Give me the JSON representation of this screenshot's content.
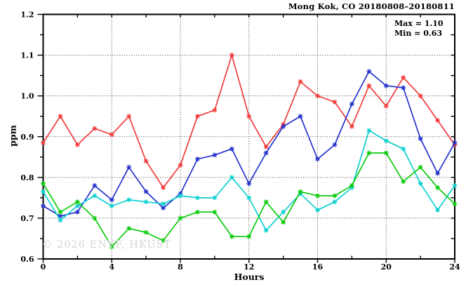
{
  "chart_data": {
    "type": "line",
    "title": "Mong Kok, CO 20180808–20180811",
    "max_label": "Max = 1.10",
    "min_label": "Min = 0.63",
    "xlabel": "Hours",
    "ylabel": "ppm",
    "watermark": "© 2026 ENVF, HKUST",
    "xlim": [
      0,
      24
    ],
    "ylim": [
      0.6,
      1.2
    ],
    "x_major_tick_step": 4,
    "x_minor_tick_step": 2,
    "y_major_tick_step": 0.1,
    "y_minor_tick_step": 0.05,
    "grid": "dotted-at-major-ticks",
    "legend": "none",
    "marker": "asterisk",
    "x": [
      0,
      1,
      2,
      3,
      4,
      5,
      6,
      7,
      8,
      9,
      10,
      11,
      12,
      13,
      14,
      15,
      16,
      17,
      18,
      19,
      20,
      21,
      22,
      23,
      24
    ],
    "series": [
      {
        "name": "red",
        "color": "#f23b3b",
        "values": [
          0.885,
          0.95,
          0.88,
          0.92,
          0.905,
          0.95,
          0.84,
          0.775,
          0.83,
          0.95,
          0.965,
          1.1,
          0.95,
          0.875,
          0.93,
          1.035,
          1.0,
          0.985,
          0.925,
          1.025,
          0.975,
          1.045,
          1.0,
          0.94,
          0.88
        ]
      },
      {
        "name": "blue",
        "color": "#2433cc",
        "values": [
          0.73,
          0.705,
          0.715,
          0.78,
          0.745,
          0.825,
          0.765,
          0.725,
          0.76,
          0.845,
          0.855,
          0.87,
          0.785,
          0.86,
          0.925,
          0.95,
          0.845,
          0.88,
          0.98,
          1.06,
          1.025,
          1.02,
          0.895,
          0.81,
          0.885
        ]
      },
      {
        "name": "cyan",
        "color": "#0ed0d0",
        "values": [
          0.765,
          0.695,
          0.73,
          0.755,
          0.73,
          0.745,
          0.74,
          0.735,
          0.755,
          0.75,
          0.75,
          0.8,
          0.75,
          0.67,
          0.715,
          0.76,
          0.72,
          0.74,
          0.775,
          0.915,
          0.89,
          0.87,
          0.785,
          0.72,
          0.78
        ]
      },
      {
        "name": "green",
        "color": "#0ccc0c",
        "values": [
          0.785,
          0.715,
          0.74,
          0.7,
          0.63,
          0.675,
          0.665,
          0.645,
          0.7,
          0.715,
          0.715,
          0.655,
          0.655,
          0.74,
          0.69,
          0.765,
          0.755,
          0.755,
          0.78,
          0.86,
          0.86,
          0.79,
          0.825,
          0.775,
          0.735
        ]
      }
    ]
  },
  "style": {
    "axis_color": "#000000",
    "grid_color": "#3a3a3a",
    "watermark_color": "#d6d6d6",
    "background": "#ffffff"
  }
}
